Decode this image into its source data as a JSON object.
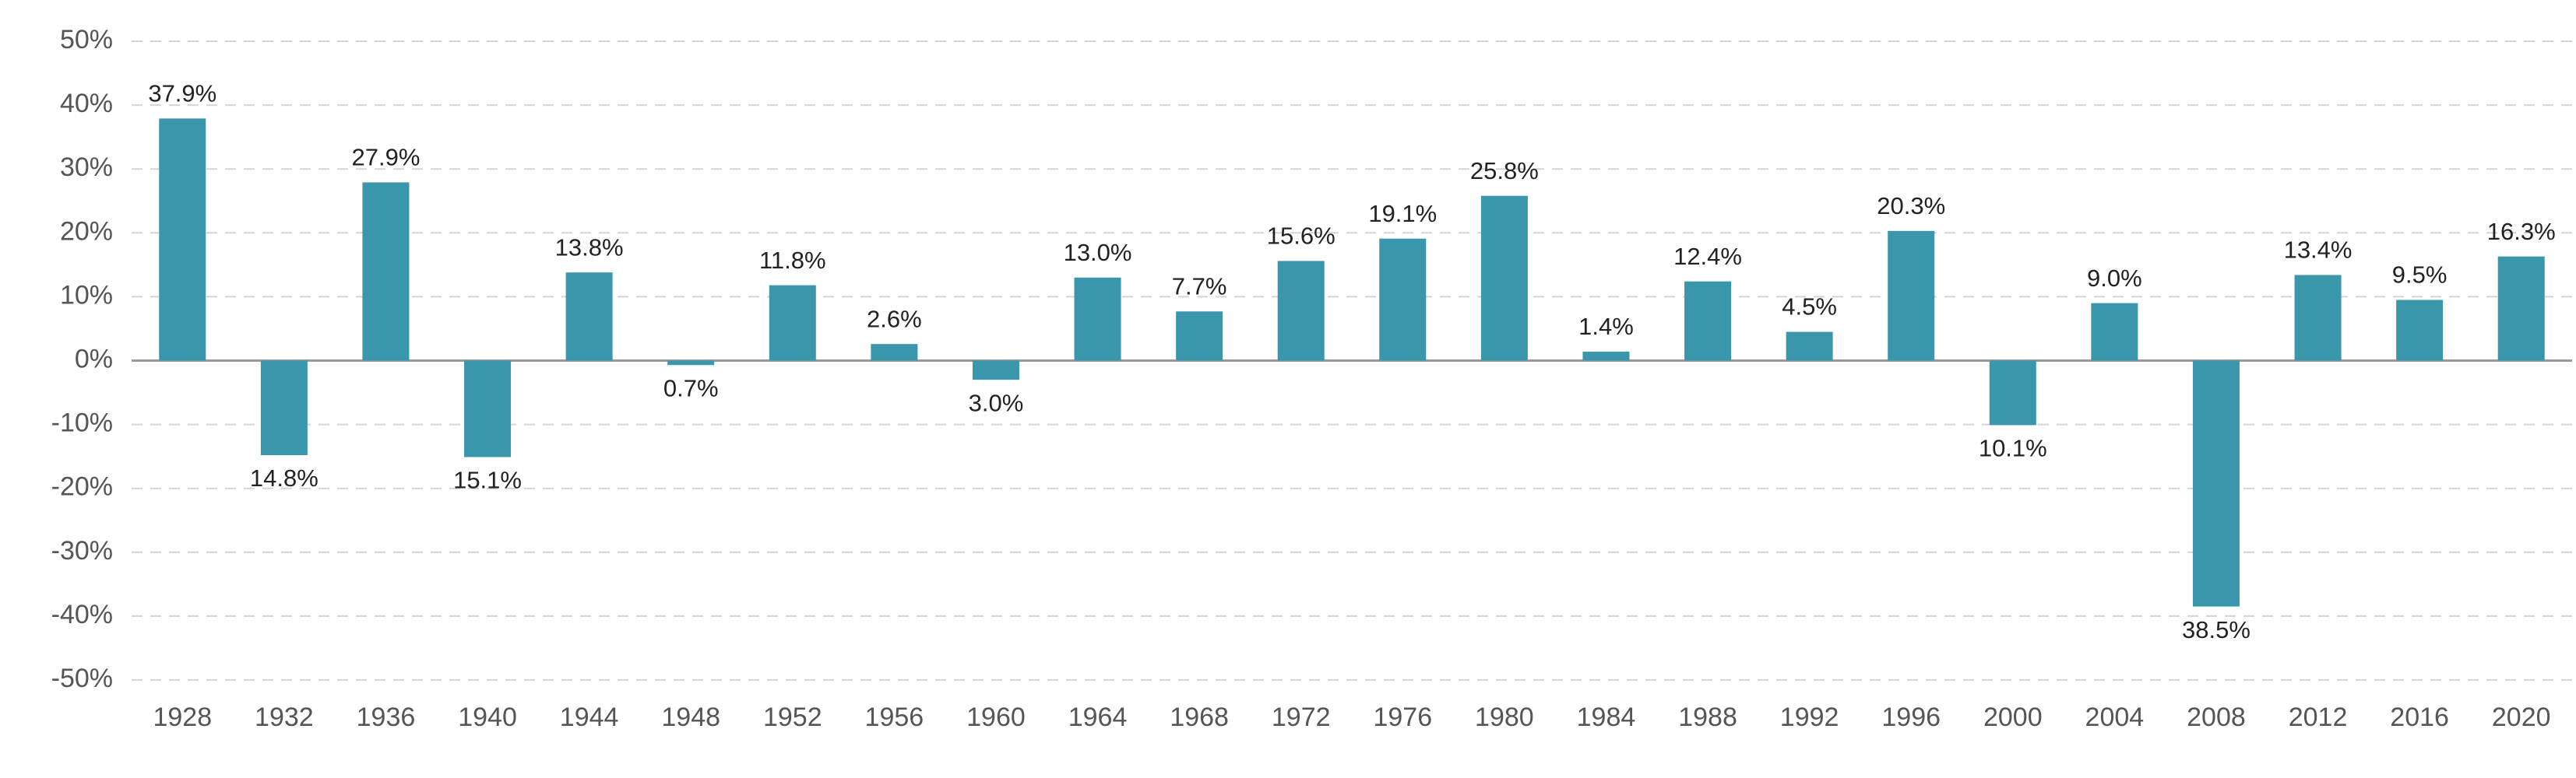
{
  "chart_data": {
    "type": "bar",
    "color": "#3a97ab",
    "grid": true,
    "categories": [
      "1928",
      "1932",
      "1936",
      "1940",
      "1944",
      "1948",
      "1952",
      "1956",
      "1960",
      "1964",
      "1968",
      "1972",
      "1976",
      "1980",
      "1984",
      "1988",
      "1992",
      "1996",
      "2000",
      "2004",
      "2008",
      "2012",
      "2016",
      "2020"
    ],
    "values": [
      37.9,
      -14.8,
      27.9,
      -15.1,
      13.8,
      -0.7,
      11.8,
      2.6,
      -3.0,
      13.0,
      7.7,
      15.6,
      19.1,
      25.8,
      1.4,
      12.4,
      4.5,
      20.3,
      -10.1,
      9.0,
      -38.5,
      13.4,
      9.5,
      16.3
    ],
    "value_labels": [
      "37.9%",
      "14.8%",
      "27.9%",
      "15.1%",
      "13.8%",
      "0.7%",
      "11.8%",
      "2.6%",
      "3.0%",
      "13.0%",
      "7.7%",
      "15.6%",
      "19.1%",
      "25.8%",
      "1.4%",
      "12.4%",
      "4.5%",
      "20.3%",
      "10.1%",
      "9.0%",
      "38.5%",
      "13.4%",
      "9.5%",
      "16.3%"
    ],
    "ylim": [
      -50,
      50
    ],
    "yticks": [
      {
        "value": -50,
        "label": "-50%"
      },
      {
        "value": -40,
        "label": "-40%"
      },
      {
        "value": -30,
        "label": "-30%"
      },
      {
        "value": -20,
        "label": "-20%"
      },
      {
        "value": -10,
        "label": "-10%"
      },
      {
        "value": 0,
        "label": "0%"
      },
      {
        "value": 10,
        "label": "10%"
      },
      {
        "value": 20,
        "label": "20%"
      },
      {
        "value": 30,
        "label": "30%"
      },
      {
        "value": 40,
        "label": "40%"
      },
      {
        "value": 50,
        "label": "50%"
      }
    ]
  }
}
